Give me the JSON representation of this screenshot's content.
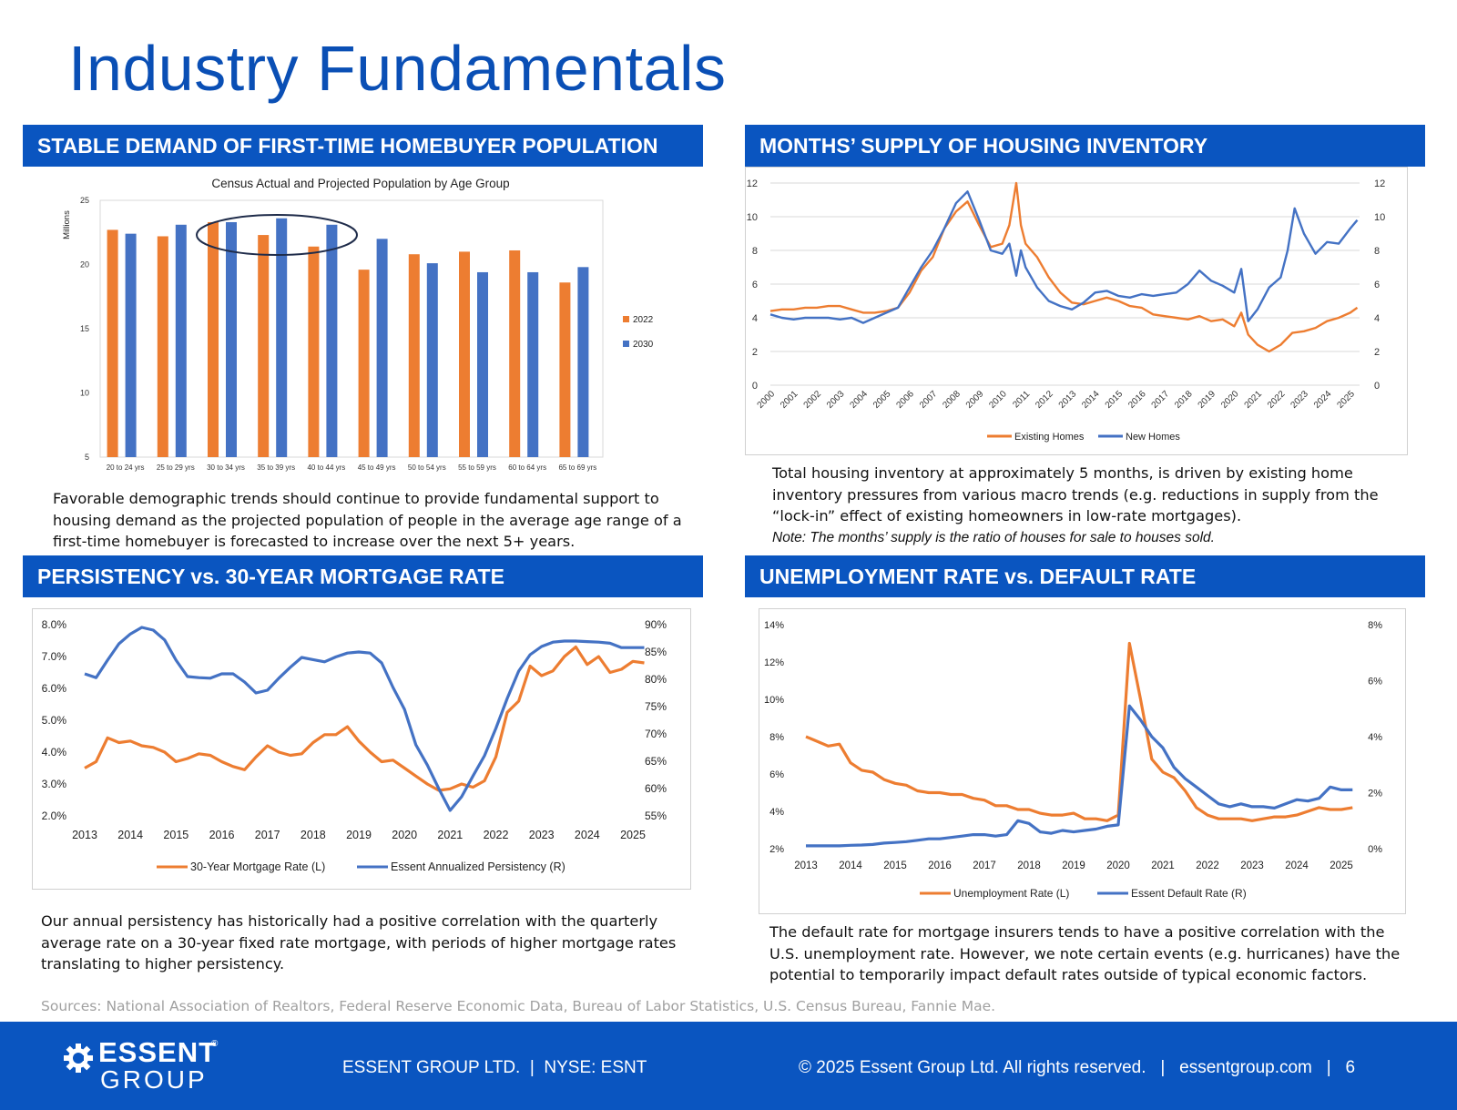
{
  "page_title": "Industry Fundamentals",
  "sections": {
    "s1": {
      "banner": "STABLE DEMAND OF FIRST-TIME HOMEBUYER POPULATION",
      "text": "Favorable demographic trends should continue to provide fundamental support to housing demand as the projected population of people in the average age range of a first-time homebuyer is forecasted to increase over the next 5+ years."
    },
    "s2": {
      "banner": "MONTHS’ SUPPLY OF HOUSING INVENTORY",
      "text": "Total housing inventory at approximately 5 months, is driven by existing home inventory pressures from various macro trends (e.g. reductions in supply from the “lock-in” effect of existing homeowners in low-rate mortgages).",
      "note": "Note: The months’ supply is the ratio of houses for sale to houses sold."
    },
    "s3": {
      "banner": "PERSISTENCY vs. 30-YEAR MORTGAGE RATE",
      "text": "Our annual persistency has historically had a positive correlation with the quarterly average rate on a 30-year fixed rate mortgage, with periods of higher mortgage rates translating to higher persistency."
    },
    "s4": {
      "banner": "UNEMPLOYMENT RATE vs. DEFAULT RATE",
      "text": "The default rate for mortgage insurers tends to have a positive correlation with the U.S. unemployment rate. However, we note certain events (e.g. hurricanes) have the potential to temporarily impact default rates outside of typical economic factors."
    }
  },
  "sources": "Sources: National Association of Realtors, Federal Reserve Economic Data, Bureau of Labor Statistics, U.S. Census Bureau, Fannie Mae.",
  "footer": {
    "logo_top": "ESSENT",
    "logo_reg": "®",
    "logo_bottom": "GROUP",
    "company": "ESSENT GROUP LTD.  |  NYSE: ESNT",
    "copyright": "© 2025 Essent Group Ltd. All rights reserved.   |   essentgroup.com   |   6"
  },
  "colors": {
    "brand_blue": "#0a55c0",
    "title_blue": "#0a4fb5",
    "orange": "#ed7d31",
    "series_blue": "#4472c4"
  },
  "chart_data": [
    {
      "id": "population",
      "type": "bar",
      "title": "Census Actual and Projected Population by Age Group",
      "ylabel": "Millions",
      "ylim": [
        5,
        25
      ],
      "yticks": [
        "5",
        "10",
        "15",
        "20",
        "25"
      ],
      "categories": [
        "20 to 24 yrs",
        "25 to 29 yrs",
        "30 to 34 yrs",
        "35 to 39 yrs",
        "40 to 44 yrs",
        "45 to 49 yrs",
        "50 to 54 yrs",
        "55 to 59 yrs",
        "60 to 64 yrs",
        "65 to 69 yrs"
      ],
      "series": [
        {
          "name": "2022",
          "color": "#ed7d31",
          "values": [
            22.7,
            22.2,
            23.3,
            22.3,
            21.4,
            19.6,
            20.8,
            21.0,
            21.1,
            18.6
          ]
        },
        {
          "name": "2030",
          "color": "#4472c4",
          "values": [
            22.4,
            23.1,
            23.3,
            23.6,
            23.1,
            22.0,
            20.1,
            19.4,
            19.4,
            19.8
          ]
        }
      ],
      "highlight": [
        "30 to 34 yrs",
        "40 to 44 yrs"
      ]
    },
    {
      "id": "months_supply",
      "type": "line",
      "ylim": [
        0,
        12
      ],
      "yticks": [
        "0",
        "2",
        "4",
        "6",
        "8",
        "10",
        "12"
      ],
      "x_labels": [
        "2000",
        "2001",
        "2002",
        "2003",
        "2004",
        "2005",
        "2006",
        "2007",
        "2008",
        "2009",
        "2010",
        "2011",
        "2012",
        "2013",
        "2014",
        "2015",
        "2016",
        "2017",
        "2018",
        "2019",
        "2020",
        "2021",
        "2022",
        "2023",
        "2024",
        "2025"
      ],
      "series": [
        {
          "name": "Existing Homes",
          "color": "#ed7d31",
          "x": [
            2000,
            2000.5,
            2001,
            2001.5,
            2002,
            2002.5,
            2003,
            2003.5,
            2004,
            2004.5,
            2005,
            2005.5,
            2006,
            2006.5,
            2007,
            2007.5,
            2008,
            2008.5,
            2009,
            2009.5,
            2010,
            2010.3,
            2010.6,
            2010.8,
            2011,
            2011.5,
            2012,
            2012.5,
            2013,
            2013.5,
            2014,
            2014.5,
            2015,
            2015.5,
            2016,
            2016.5,
            2017,
            2017.5,
            2018,
            2018.5,
            2019,
            2019.5,
            2020,
            2020.3,
            2020.6,
            2021,
            2021.5,
            2022,
            2022.5,
            2023,
            2023.5,
            2024,
            2024.5,
            2025,
            2025.3
          ],
          "values": [
            4.4,
            4.5,
            4.5,
            4.6,
            4.6,
            4.7,
            4.7,
            4.5,
            4.3,
            4.3,
            4.4,
            4.6,
            5.5,
            6.8,
            7.6,
            9.3,
            10.3,
            10.9,
            9.5,
            8.2,
            8.4,
            9.5,
            12.0,
            9.5,
            8.4,
            7.6,
            6.4,
            5.5,
            4.9,
            4.8,
            5.0,
            5.2,
            5.0,
            4.7,
            4.6,
            4.2,
            4.1,
            4.0,
            3.9,
            4.1,
            3.8,
            3.9,
            3.5,
            4.3,
            3.0,
            2.4,
            2.0,
            2.4,
            3.1,
            3.2,
            3.4,
            3.8,
            4.0,
            4.3,
            4.6
          ]
        },
        {
          "name": "New Homes",
          "color": "#4472c4",
          "x": [
            2000,
            2000.5,
            2001,
            2001.5,
            2002,
            2002.5,
            2003,
            2003.5,
            2004,
            2004.5,
            2005,
            2005.5,
            2006,
            2006.5,
            2007,
            2007.5,
            2008,
            2008.5,
            2009,
            2009.5,
            2010,
            2010.3,
            2010.6,
            2010.8,
            2011,
            2011.5,
            2012,
            2012.5,
            2013,
            2013.5,
            2014,
            2014.5,
            2015,
            2015.5,
            2016,
            2016.5,
            2017,
            2017.5,
            2018,
            2018.5,
            2019,
            2019.5,
            2020,
            2020.3,
            2020.6,
            2021,
            2021.5,
            2022,
            2022.3,
            2022.6,
            2023,
            2023.5,
            2024,
            2024.5,
            2025,
            2025.3
          ],
          "values": [
            4.2,
            4.0,
            3.9,
            4.0,
            4.0,
            4.0,
            3.9,
            4.0,
            3.7,
            4.0,
            4.3,
            4.6,
            5.8,
            7.0,
            8.0,
            9.3,
            10.8,
            11.5,
            9.8,
            8.0,
            7.8,
            8.4,
            6.5,
            8.0,
            7.0,
            5.8,
            5.0,
            4.7,
            4.5,
            4.9,
            5.5,
            5.6,
            5.3,
            5.2,
            5.4,
            5.3,
            5.4,
            5.5,
            6.0,
            6.8,
            6.2,
            5.9,
            5.5,
            6.9,
            3.8,
            4.5,
            5.8,
            6.4,
            8.0,
            10.5,
            9.0,
            7.8,
            8.5,
            8.4,
            9.3,
            9.8
          ]
        }
      ]
    },
    {
      "id": "persistency",
      "type": "line",
      "y_left": {
        "ticks": [
          "2.0%",
          "3.0%",
          "4.0%",
          "5.0%",
          "6.0%",
          "7.0%",
          "8.0%"
        ],
        "lim": [
          2,
          8
        ]
      },
      "y_right": {
        "ticks": [
          "55%",
          "60%",
          "65%",
          "70%",
          "75%",
          "80%",
          "85%",
          "90%"
        ],
        "lim": [
          55,
          90
        ]
      },
      "x_labels": [
        "2013",
        "2014",
        "2015",
        "2016",
        "2017",
        "2018",
        "2019",
        "2020",
        "2021",
        "2022",
        "2023",
        "2024",
        "2025"
      ],
      "series": [
        {
          "name": "30-Year Mortgage Rate (L)",
          "color": "#ed7d31",
          "axis": "left",
          "x": [
            2013,
            2013.25,
            2013.5,
            2013.75,
            2014,
            2014.25,
            2014.5,
            2014.75,
            2015,
            2015.25,
            2015.5,
            2015.75,
            2016,
            2016.25,
            2016.5,
            2016.75,
            2017,
            2017.25,
            2017.5,
            2017.75,
            2018,
            2018.25,
            2018.5,
            2018.75,
            2019,
            2019.25,
            2019.5,
            2019.75,
            2020,
            2020.25,
            2020.5,
            2020.75,
            2021,
            2021.25,
            2021.5,
            2021.75,
            2022,
            2022.25,
            2022.5,
            2022.75,
            2023,
            2023.25,
            2023.5,
            2023.75,
            2024,
            2024.25,
            2024.5,
            2024.75,
            2025,
            2025.25
          ],
          "values": [
            3.5,
            3.7,
            4.45,
            4.3,
            4.35,
            4.2,
            4.15,
            4.0,
            3.7,
            3.8,
            3.95,
            3.9,
            3.7,
            3.55,
            3.45,
            3.85,
            4.2,
            4.0,
            3.9,
            3.95,
            4.3,
            4.55,
            4.55,
            4.8,
            4.35,
            4.0,
            3.7,
            3.75,
            3.5,
            3.25,
            3.0,
            2.8,
            2.85,
            3.0,
            2.9,
            3.1,
            3.85,
            5.25,
            5.6,
            6.7,
            6.4,
            6.55,
            7.0,
            7.3,
            6.75,
            7.0,
            6.5,
            6.6,
            6.85,
            6.8
          ]
        },
        {
          "name": "Essent Annualized Persistency (R)",
          "color": "#4472c4",
          "axis": "right",
          "x": [
            2013,
            2013.25,
            2013.5,
            2013.75,
            2014,
            2014.25,
            2014.5,
            2014.75,
            2015,
            2015.25,
            2015.5,
            2015.75,
            2016,
            2016.25,
            2016.5,
            2016.75,
            2017,
            2017.25,
            2017.5,
            2017.75,
            2018,
            2018.25,
            2018.5,
            2018.75,
            2019,
            2019.25,
            2019.5,
            2019.75,
            2020,
            2020.25,
            2020.5,
            2020.75,
            2021,
            2021.25,
            2021.5,
            2021.75,
            2022,
            2022.25,
            2022.5,
            2022.75,
            2023,
            2023.25,
            2023.5,
            2023.75,
            2024,
            2024.25,
            2024.5,
            2024.75,
            2025,
            2025.25
          ],
          "values": [
            81,
            80.3,
            83.5,
            86.5,
            88.3,
            89.5,
            89.0,
            87.2,
            83.5,
            80.5,
            80.3,
            80.2,
            81.0,
            81.0,
            79.5,
            77.5,
            78.0,
            80.2,
            82.2,
            84.0,
            83.6,
            83.2,
            84.1,
            84.8,
            85.0,
            84.8,
            83.0,
            78.5,
            74.5,
            68.0,
            64.3,
            60.0,
            56.0,
            58.5,
            62.3,
            66.0,
            71.0,
            76.5,
            81.5,
            84.5,
            86.0,
            86.8,
            87.0,
            87.0,
            86.9,
            86.8,
            86.6,
            85.8,
            85.8,
            85.8
          ]
        }
      ]
    },
    {
      "id": "unemployment_default",
      "type": "line",
      "y_left": {
        "ticks": [
          "2%",
          "4%",
          "6%",
          "8%",
          "10%",
          "12%",
          "14%"
        ],
        "lim": [
          2,
          14
        ]
      },
      "y_right": {
        "ticks": [
          "0%",
          "2%",
          "4%",
          "6%",
          "8%"
        ],
        "lim": [
          0,
          8
        ]
      },
      "x_labels": [
        "2013",
        "2014",
        "2015",
        "2016",
        "2017",
        "2018",
        "2019",
        "2020",
        "2021",
        "2022",
        "2023",
        "2024",
        "2025"
      ],
      "series": [
        {
          "name": "Unemployment Rate (L)",
          "color": "#ed7d31",
          "axis": "left",
          "x": [
            2013,
            2013.25,
            2013.5,
            2013.75,
            2014,
            2014.25,
            2014.5,
            2014.75,
            2015,
            2015.25,
            2015.5,
            2015.75,
            2016,
            2016.25,
            2016.5,
            2016.75,
            2017,
            2017.25,
            2017.5,
            2017.75,
            2018,
            2018.25,
            2018.5,
            2018.75,
            2019,
            2019.25,
            2019.5,
            2019.75,
            2020,
            2020.25,
            2020.5,
            2020.75,
            2021,
            2021.25,
            2021.5,
            2021.75,
            2022,
            2022.25,
            2022.5,
            2022.75,
            2023,
            2023.25,
            2023.5,
            2023.75,
            2024,
            2024.25,
            2024.5,
            2024.75,
            2025,
            2025.25
          ],
          "values": [
            8.0,
            7.75,
            7.5,
            7.6,
            6.6,
            6.2,
            6.1,
            5.7,
            5.5,
            5.4,
            5.1,
            5.0,
            5.0,
            4.9,
            4.9,
            4.7,
            4.6,
            4.3,
            4.3,
            4.1,
            4.1,
            3.9,
            3.8,
            3.8,
            3.9,
            3.6,
            3.6,
            3.5,
            3.8,
            13.0,
            10.0,
            6.8,
            6.1,
            5.8,
            5.1,
            4.2,
            3.8,
            3.6,
            3.6,
            3.6,
            3.5,
            3.6,
            3.7,
            3.7,
            3.8,
            4.0,
            4.2,
            4.1,
            4.1,
            4.2
          ]
        },
        {
          "name": "Essent Default Rate (R)",
          "color": "#4472c4",
          "axis": "right",
          "x": [
            2013,
            2013.25,
            2013.5,
            2013.75,
            2014,
            2014.25,
            2014.5,
            2014.75,
            2015,
            2015.25,
            2015.5,
            2015.75,
            2016,
            2016.25,
            2016.5,
            2016.75,
            2017,
            2017.25,
            2017.5,
            2017.75,
            2018,
            2018.25,
            2018.5,
            2018.75,
            2019,
            2019.25,
            2019.5,
            2019.75,
            2020,
            2020.25,
            2020.5,
            2020.75,
            2021,
            2021.25,
            2021.5,
            2021.75,
            2022,
            2022.25,
            2022.5,
            2022.75,
            2023,
            2023.25,
            2023.5,
            2023.75,
            2024,
            2024.25,
            2024.5,
            2024.75,
            2025,
            2025.25
          ],
          "values": [
            0.1,
            0.1,
            0.1,
            0.1,
            0.12,
            0.13,
            0.15,
            0.2,
            0.22,
            0.25,
            0.3,
            0.35,
            0.35,
            0.4,
            0.45,
            0.5,
            0.5,
            0.45,
            0.5,
            1.0,
            0.9,
            0.6,
            0.55,
            0.65,
            0.6,
            0.65,
            0.7,
            0.8,
            0.85,
            5.1,
            4.6,
            4.0,
            3.6,
            2.9,
            2.5,
            2.2,
            1.9,
            1.6,
            1.5,
            1.6,
            1.5,
            1.5,
            1.45,
            1.6,
            1.75,
            1.7,
            1.8,
            2.2,
            2.1,
            2.1
          ]
        }
      ]
    }
  ]
}
